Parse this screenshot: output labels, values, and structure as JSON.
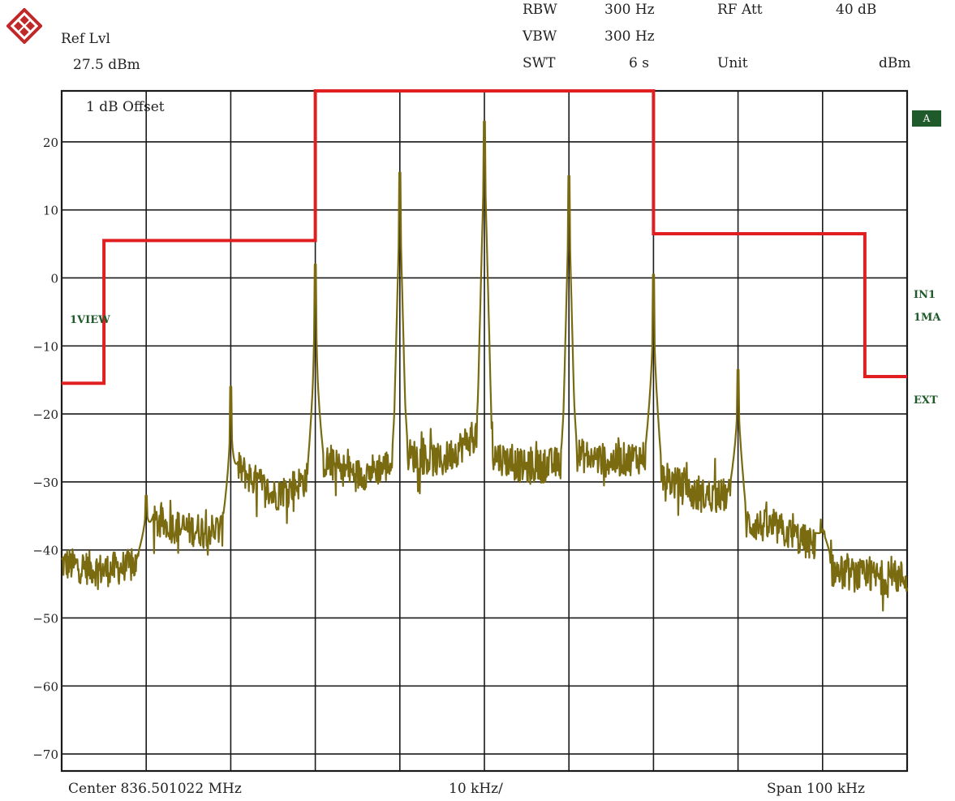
{
  "header": {
    "ref_label": "Ref Lvl",
    "ref_value": "27.5 dBm",
    "rbw_label": "RBW",
    "rbw_value": "300 Hz",
    "vbw_label": "VBW",
    "vbw_value": "300 Hz",
    "swt_label": "SWT",
    "swt_value": "6 s",
    "rfatt_label": "RF Att",
    "rfatt_value": "40 dB",
    "unit_label": "Unit",
    "unit_value": "dBm"
  },
  "annotations": {
    "offset": "1 dB Offset",
    "trace": "A",
    "view": "1VIEW",
    "in1": "IN1",
    "ma": "1MA",
    "ext": "EXT"
  },
  "footer": {
    "center": "Center 836.501022 MHz",
    "per_div": "10 kHz/",
    "span": "Span 100 kHz"
  },
  "colors": {
    "grid": "#1a1a1a",
    "limit_line": "#e02020",
    "trace": "#7a6a10",
    "label_green": "#1f5a2a"
  },
  "chart_data": {
    "type": "line",
    "x_unit": "kHz offset from center",
    "xlim": [
      -50,
      50
    ],
    "ylim": [
      -72.5,
      27.5
    ],
    "yticks": [
      20,
      10,
      0,
      -10,
      -20,
      -30,
      -40,
      -50,
      -60,
      -70
    ],
    "grid": true,
    "limit_line": {
      "x": [
        -50,
        -45,
        -45,
        -20,
        -20,
        20,
        20,
        45,
        45,
        50
      ],
      "y": [
        -15.5,
        -15.5,
        5.5,
        5.5,
        27.5,
        27.5,
        6.5,
        6.5,
        -14.5,
        -14.5
      ]
    },
    "peaks": [
      {
        "x": -40,
        "y": -32
      },
      {
        "x": -30,
        "y": -16
      },
      {
        "x": -20,
        "y": 2
      },
      {
        "x": -10,
        "y": 15.5
      },
      {
        "x": 0,
        "y": 23
      },
      {
        "x": 10,
        "y": 15
      },
      {
        "x": 20,
        "y": 0.5
      },
      {
        "x": 30,
        "y": -13.5
      },
      {
        "x": 40,
        "y": -37
      }
    ],
    "floor": [
      {
        "x": -50,
        "y": -42
      },
      {
        "x": -45,
        "y": -43
      },
      {
        "x": -40,
        "y": -42
      },
      {
        "x": -39,
        "y": -36
      },
      {
        "x": -35,
        "y": -37
      },
      {
        "x": -30,
        "y": -37
      },
      {
        "x": -29,
        "y": -28
      },
      {
        "x": -25,
        "y": -32
      },
      {
        "x": -20,
        "y": -29
      },
      {
        "x": -19,
        "y": -27
      },
      {
        "x": -15,
        "y": -29
      },
      {
        "x": -10,
        "y": -27
      },
      {
        "x": -9,
        "y": -26
      },
      {
        "x": -5,
        "y": -27
      },
      {
        "x": 0,
        "y": -22
      },
      {
        "x": 1,
        "y": -26
      },
      {
        "x": 5,
        "y": -28
      },
      {
        "x": 10,
        "y": -27
      },
      {
        "x": 11,
        "y": -26
      },
      {
        "x": 15,
        "y": -27
      },
      {
        "x": 20,
        "y": -26
      },
      {
        "x": 21,
        "y": -29
      },
      {
        "x": 25,
        "y": -32
      },
      {
        "x": 30,
        "y": -32
      },
      {
        "x": 31,
        "y": -36
      },
      {
        "x": 35,
        "y": -37
      },
      {
        "x": 40,
        "y": -40
      },
      {
        "x": 41,
        "y": -43
      },
      {
        "x": 45,
        "y": -44
      },
      {
        "x": 50,
        "y": -44
      }
    ]
  }
}
